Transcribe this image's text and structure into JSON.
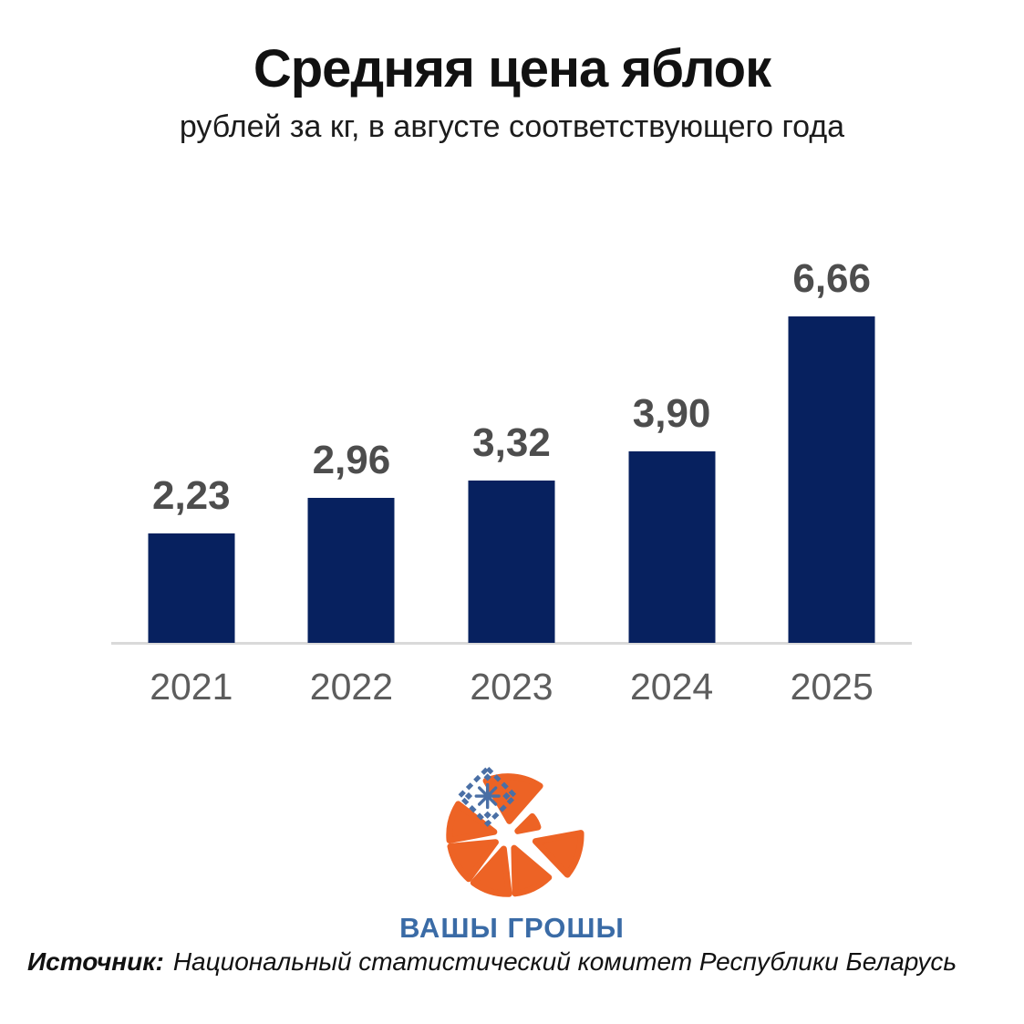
{
  "header": {
    "title": "Средняя цена яблок",
    "subtitle": "рублей за кг, в августе соответствующего года"
  },
  "chart_data": {
    "type": "bar",
    "title": "Средняя цена яблок",
    "subtitle": "рублей за кг, в августе соответствующего года",
    "categories": [
      "2021",
      "2022",
      "2023",
      "2024",
      "2025"
    ],
    "values": [
      2.23,
      2.96,
      3.32,
      3.9,
      6.66
    ],
    "value_labels": [
      "2,23",
      "2,96",
      "3,32",
      "3,90",
      "6,66"
    ],
    "xlabel": "",
    "ylabel": "",
    "ylim": [
      0,
      7
    ],
    "grid": false,
    "legend": false,
    "bar_color": "#07215f",
    "value_label_color": "#4d4d4d",
    "tick_label_color": "#5d5d5d",
    "baseline_color": "#d9d9d9"
  },
  "logo": {
    "text": "ВАШЫ ГРОШЫ",
    "text_color": "#3a6ba6",
    "orange": "#ed6325",
    "ornament_blue": "#4a6fa5"
  },
  "footer": {
    "source_label": "Источник:",
    "source_text": "Национальный статистический комитет Республики Беларусь"
  }
}
